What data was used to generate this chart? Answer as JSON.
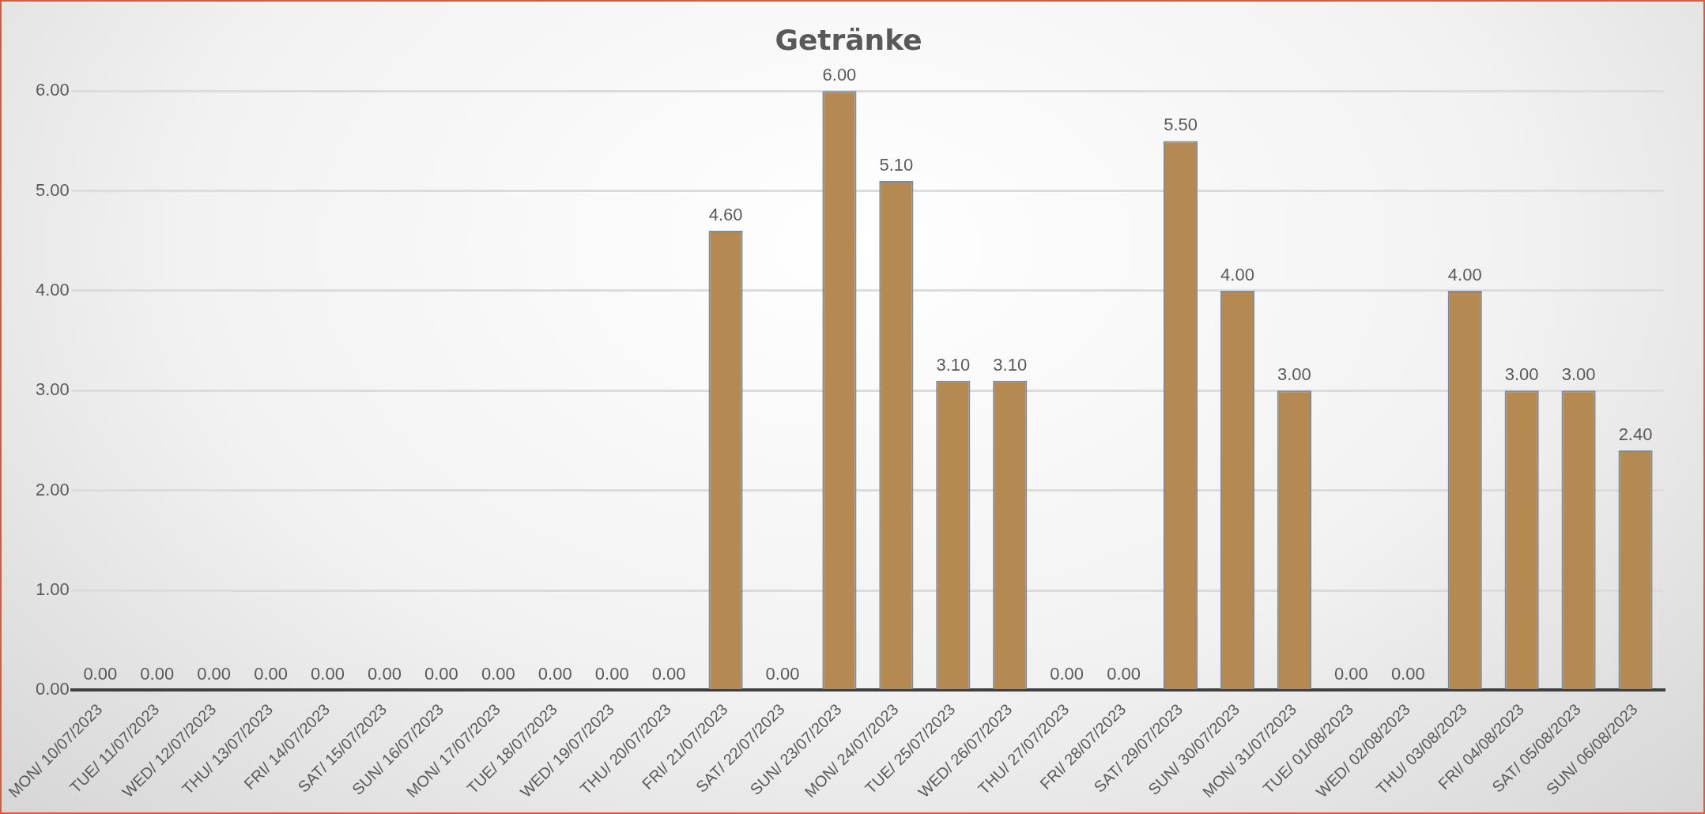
{
  "chart_data": {
    "type": "bar",
    "title": "Getränke",
    "categories": [
      "MON/ 10/07/2023",
      "TUE/ 11/07/2023",
      "WED/ 12/07/2023",
      "THU/ 13/07/2023",
      "FRI/ 14/07/2023",
      "SAT/ 15/07/2023",
      "SUN/ 16/07/2023",
      "MON/ 17/07/2023",
      "TUE/ 18/07/2023",
      "WED/ 19/07/2023",
      "THU/ 20/07/2023",
      "FRI/ 21/07/2023",
      "SAT/ 22/07/2023",
      "SUN/ 23/07/2023",
      "MON/ 24/07/2023",
      "TUE/ 25/07/2023",
      "WED/ 26/07/2023",
      "THU/ 27/07/2023",
      "FRI/ 28/07/2023",
      "SAT/ 29/07/2023",
      "SUN/ 30/07/2023",
      "MON/ 31/07/2023",
      "TUE/ 01/08/2023",
      "WED/ 02/08/2023",
      "THU/ 03/08/2023",
      "FRI/ 04/08/2023",
      "SAT/ 05/08/2023",
      "SUN/ 06/08/2023"
    ],
    "values": [
      0,
      0,
      0,
      0,
      0,
      0,
      0,
      0,
      0,
      0,
      0,
      4.6,
      0,
      6,
      5.1,
      3.1,
      3.1,
      0,
      0,
      5.5,
      4,
      3,
      0,
      0,
      4,
      3,
      3,
      2.4
    ],
    "value_labels": [
      "0.00",
      "0.00",
      "0.00",
      "0.00",
      "0.00",
      "0.00",
      "0.00",
      "0.00",
      "0.00",
      "0.00",
      "0.00",
      "4.60",
      "0.00",
      "6.00",
      "5.10",
      "3.10",
      "3.10",
      "0.00",
      "0.00",
      "5.50",
      "4.00",
      "3.00",
      "0.00",
      "0.00",
      "4.00",
      "3.00",
      "3.00",
      "2.40"
    ],
    "color": "#b48a52",
    "ylim": [
      0,
      6
    ],
    "yticks": [
      {
        "value": 0,
        "label": "0.00"
      },
      {
        "value": 1,
        "label": "1.00"
      },
      {
        "value": 2,
        "label": "2.00"
      },
      {
        "value": 3,
        "label": "3.00"
      },
      {
        "value": 4,
        "label": "4.00"
      },
      {
        "value": 5,
        "label": "5.00"
      },
      {
        "value": 6,
        "label": "6.00"
      }
    ],
    "grid": "y"
  }
}
